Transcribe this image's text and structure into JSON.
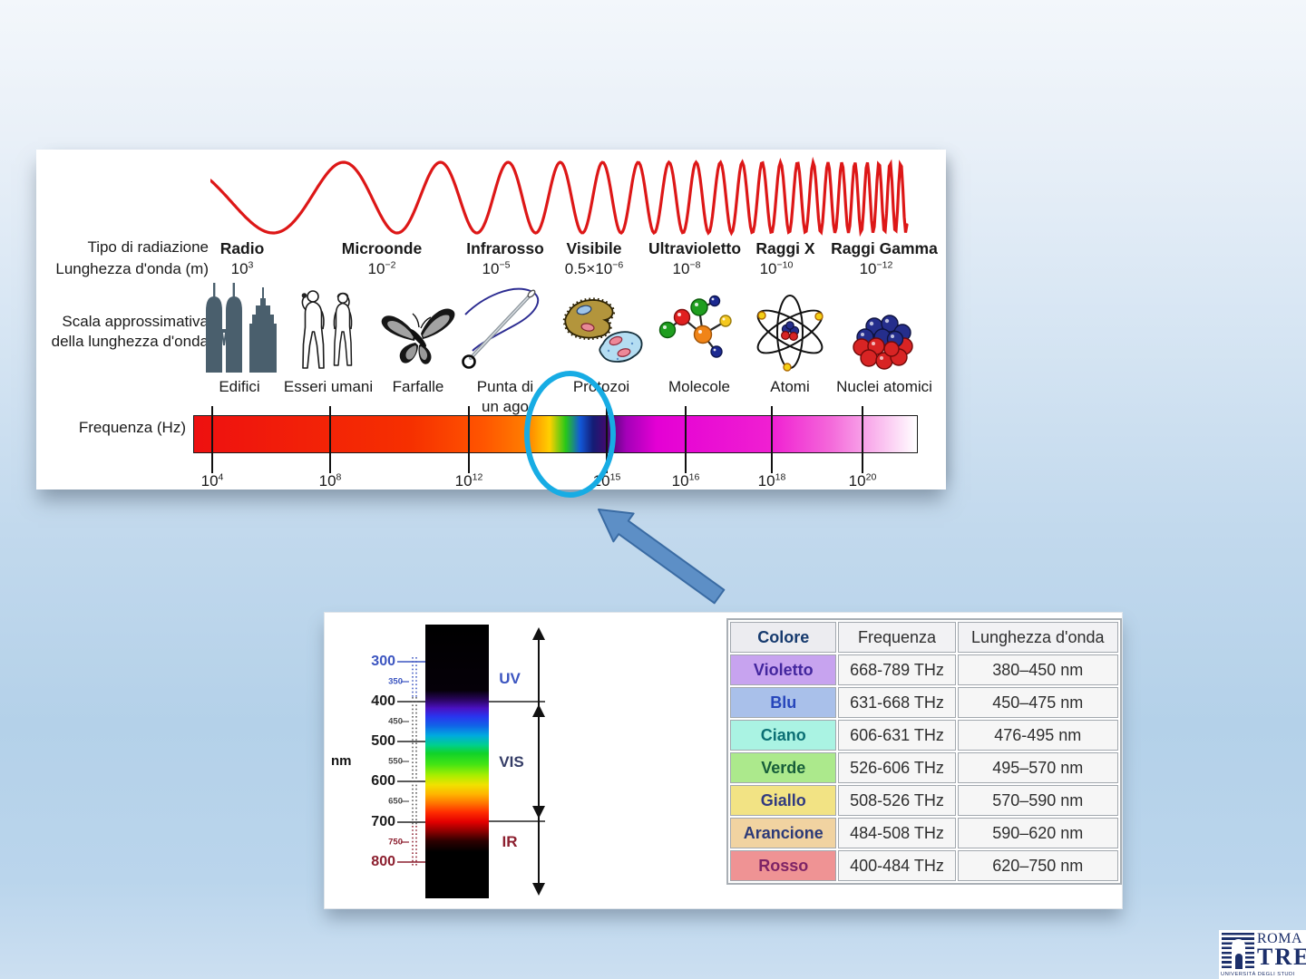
{
  "em_panel": {
    "row_labels": {
      "radiation_type": "Tipo di radiazione",
      "wavelength": "Lunghezza d'onda (m)",
      "scale_line1": "Scala approssimativa",
      "scale_line2": "della lunghezza d'onda",
      "frequency": "Frequenza (Hz)"
    },
    "bands": [
      {
        "name": "Radio",
        "wl_base": "10",
        "wl_exp": "3"
      },
      {
        "name": "Microonde",
        "wl_base": "10",
        "wl_exp": "−2"
      },
      {
        "name": "Infrarosso",
        "wl_base": "10",
        "wl_exp": "−5"
      },
      {
        "name": "Visibile",
        "wl_base": "0.5×10",
        "wl_exp": "−6"
      },
      {
        "name": "Ultravioletto",
        "wl_base": "10",
        "wl_exp": "−8"
      },
      {
        "name": "Raggi X",
        "wl_base": "10",
        "wl_exp": "−10"
      },
      {
        "name": "Raggi Gamma",
        "wl_base": "10",
        "wl_exp": "−12"
      }
    ],
    "scale_items": [
      {
        "label": "Edifici",
        "icon": "buildings-icon"
      },
      {
        "label": "Esseri umani",
        "icon": "humans-icon"
      },
      {
        "label": "Farfalle",
        "icon": "butterfly-icon"
      },
      {
        "label": "Punta di",
        "label2": "un ago",
        "icon": "needle-icon"
      },
      {
        "label": "Protozoi",
        "icon": "protozoa-icon"
      },
      {
        "label": "Molecole",
        "icon": "molecule-icon"
      },
      {
        "label": "Atomi",
        "icon": "atom-icon"
      },
      {
        "label": "Nuclei atomici",
        "icon": "nucleus-icon"
      }
    ],
    "freq_ticks": [
      {
        "base": "10",
        "exp": "4"
      },
      {
        "base": "10",
        "exp": "8"
      },
      {
        "base": "10",
        "exp": "12"
      },
      {
        "base": "10",
        "exp": "15"
      },
      {
        "base": "10",
        "exp": "16"
      },
      {
        "base": "10",
        "exp": "18"
      },
      {
        "base": "10",
        "exp": "20"
      }
    ]
  },
  "visible_panel": {
    "unit": "nm",
    "axis_major": [
      {
        "label": "300",
        "color": "#3c55c0"
      },
      {
        "label": "400",
        "color": "#1c1c1c"
      },
      {
        "label": "500",
        "color": "#1c1c1c"
      },
      {
        "label": "600",
        "color": "#1c1c1c"
      },
      {
        "label": "700",
        "color": "#1c1c1c"
      },
      {
        "label": "800",
        "color": "#8c1f2f"
      }
    ],
    "axis_minor": [
      {
        "label": "350",
        "color": "#3c55c0"
      },
      {
        "label": "450",
        "color": "#4a4a4a"
      },
      {
        "label": "550",
        "color": "#4a4a4a"
      },
      {
        "label": "650",
        "color": "#4a4a4a"
      },
      {
        "label": "750",
        "color": "#8c1f2f"
      }
    ],
    "regions": [
      {
        "label": "UV",
        "color": "#3c55c0"
      },
      {
        "label": "VIS",
        "color": "#343c66"
      },
      {
        "label": "IR",
        "color": "#8c1f2f"
      }
    ],
    "table": {
      "headers": [
        "Colore",
        "Frequenza",
        "Lunghezza d'onda"
      ],
      "rows": [
        {
          "color": "Violetto",
          "frequency": "668-789 THz",
          "wavelength": "380–450 nm",
          "bg": "#c7a3ef",
          "fg": "#43269e"
        },
        {
          "color": "Blu",
          "frequency": "631-668 THz",
          "wavelength": "450–475 nm",
          "bg": "#a9c0ea",
          "fg": "#2746bb"
        },
        {
          "color": "Ciano",
          "frequency": "606-631 THz",
          "wavelength": "476-495 nm",
          "bg": "#aaf3e3",
          "fg": "#0b6f74"
        },
        {
          "color": "Verde",
          "frequency": "526-606 THz",
          "wavelength": "495–570 nm",
          "bg": "#ace98c",
          "fg": "#175e3a"
        },
        {
          "color": "Giallo",
          "frequency": "508-526 THz",
          "wavelength": "570–590 nm",
          "bg": "#f2e384",
          "fg": "#313b80"
        },
        {
          "color": "Arancione",
          "frequency": "484-508 THz",
          "wavelength": "590–620 nm",
          "bg": "#f1d3a1",
          "fg": "#2c3a78"
        },
        {
          "color": "Rosso",
          "frequency": "400-484 THz",
          "wavelength": "620–750 nm",
          "bg": "#ef9394",
          "fg": "#7e2366"
        }
      ]
    }
  },
  "logo": {
    "name_top": "ROMA",
    "name_bottom": "TRE",
    "subtitle": "UNIVERSITÀ DEGLI STUDI"
  },
  "colors": {
    "wave": "#dd1717",
    "highlight_circle": "#17ace4",
    "pointer_arrow": "#5d8fc6"
  }
}
